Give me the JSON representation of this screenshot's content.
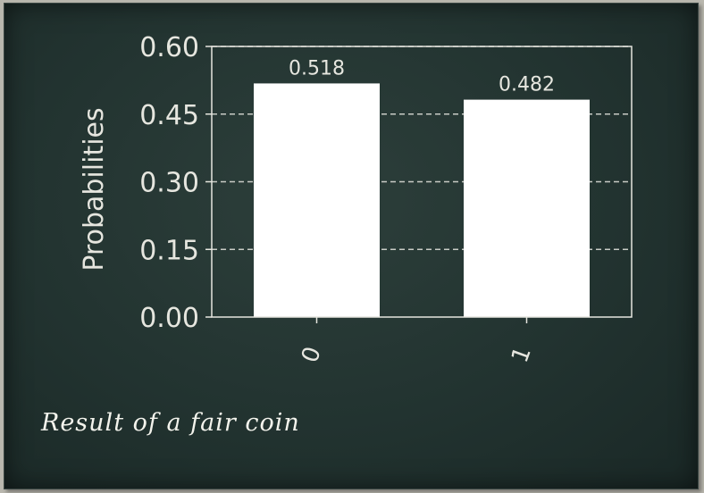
{
  "caption": "Result of a fair coin",
  "chart_data": {
    "type": "bar",
    "categories": [
      "0",
      "1"
    ],
    "values": [
      0.518,
      0.482
    ],
    "data_labels": [
      "0.518",
      "0.482"
    ],
    "ylabel": "Probabilities",
    "xlabel": "",
    "ylim": [
      0,
      0.6
    ],
    "yticks": [
      0,
      0.15,
      0.3,
      0.45,
      0.6
    ],
    "ytick_labels": [
      "0.00",
      "0.15",
      "0.30",
      "0.45",
      "0.60"
    ],
    "grid": "horizontal dashed",
    "colors": {
      "bar": "#ffffff",
      "axis": "#e6e6df",
      "grid": "#c9ccc6"
    }
  }
}
